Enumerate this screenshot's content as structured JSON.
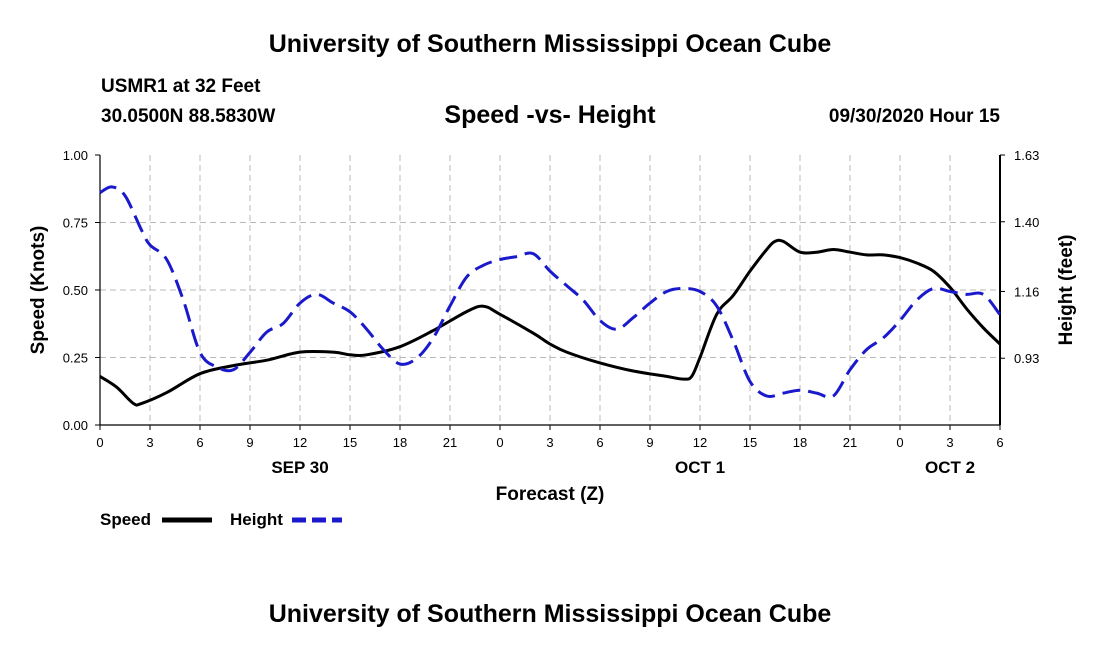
{
  "header": {
    "title": "University of Southern Mississippi Ocean Cube",
    "station": "USMR1 at 32 Feet",
    "coords": "30.0500N 88.5830W",
    "datetime": "09/30/2020 Hour 15",
    "footer_title": "University of Southern Mississippi Ocean Cube"
  },
  "chart_data": {
    "type": "line",
    "title": "Speed -vs- Height",
    "xlabel": "Forecast (Z)",
    "ylabel_left": "Speed (Knots)",
    "ylabel_right": "Height (feet)",
    "x_range": [
      0,
      54
    ],
    "x_ticks": [
      0,
      3,
      6,
      9,
      12,
      15,
      18,
      21,
      24,
      27,
      30,
      33,
      36,
      39,
      42,
      45,
      48,
      51,
      54
    ],
    "x_tick_labels": [
      "0",
      "3",
      "6",
      "9",
      "12",
      "15",
      "18",
      "21",
      "0",
      "3",
      "6",
      "9",
      "12",
      "15",
      "18",
      "21",
      "0",
      "3",
      "6"
    ],
    "date_labels": [
      {
        "label": "SEP 30",
        "x": 12
      },
      {
        "label": "OCT 1",
        "x": 36
      },
      {
        "label": "OCT 2",
        "x": 51
      }
    ],
    "y_left_range": [
      0,
      1
    ],
    "y_left_ticks": [
      0,
      0.25,
      0.5,
      0.75,
      1
    ],
    "y_left_tick_labels": [
      "0.00",
      "0.25",
      "0.50",
      "0.75",
      "1.00"
    ],
    "y_right_range": [
      0.7,
      1.63
    ],
    "y_right_ticks": [
      0.93,
      1.16,
      1.4,
      1.63
    ],
    "y_right_tick_labels": [
      "0.93",
      "1.16",
      "1.40",
      "1.63"
    ],
    "grid": true,
    "legend": {
      "placement": "bottom-left"
    },
    "series": [
      {
        "name": "Speed",
        "axis": "left",
        "color": "#000000",
        "dash": "solid",
        "x": [
          0,
          1,
          2,
          2.5,
          4,
          6,
          8,
          10,
          12,
          14,
          15,
          16,
          18,
          20,
          22,
          23,
          24,
          26,
          27,
          28,
          30,
          32,
          34,
          35,
          35.5,
          36,
          37,
          38,
          39,
          40,
          40.5,
          41,
          42,
          43,
          44,
          45,
          46,
          47,
          48,
          49,
          50,
          51,
          52,
          53,
          54
        ],
        "values": [
          0.18,
          0.14,
          0.08,
          0.08,
          0.12,
          0.19,
          0.22,
          0.24,
          0.27,
          0.27,
          0.26,
          0.26,
          0.29,
          0.35,
          0.42,
          0.44,
          0.41,
          0.34,
          0.3,
          0.27,
          0.23,
          0.2,
          0.18,
          0.17,
          0.18,
          0.25,
          0.41,
          0.48,
          0.57,
          0.65,
          0.68,
          0.68,
          0.64,
          0.64,
          0.65,
          0.64,
          0.63,
          0.63,
          0.62,
          0.6,
          0.57,
          0.51,
          0.43,
          0.36,
          0.3
        ]
      },
      {
        "name": "Height",
        "axis": "right",
        "color": "#1a1acc",
        "dash": "dashed",
        "x": [
          0,
          0.7,
          1.5,
          2.5,
          3,
          4,
          5,
          6,
          7,
          8,
          9,
          10,
          11,
          12,
          13,
          14,
          15,
          16,
          17,
          18,
          19,
          20,
          21,
          22,
          23,
          24,
          25,
          26,
          27,
          28,
          29,
          30,
          31,
          32,
          33,
          34,
          35,
          36,
          37,
          38,
          39,
          40,
          41,
          42,
          43,
          44,
          45,
          46,
          47,
          48,
          49,
          50,
          51,
          52,
          53,
          54
        ],
        "values": [
          1.5,
          1.52,
          1.49,
          1.37,
          1.32,
          1.27,
          1.13,
          0.95,
          0.9,
          0.89,
          0.95,
          1.02,
          1.05,
          1.12,
          1.15,
          1.12,
          1.09,
          1.03,
          0.96,
          0.91,
          0.93,
          1.0,
          1.11,
          1.21,
          1.25,
          1.27,
          1.28,
          1.29,
          1.23,
          1.18,
          1.13,
          1.06,
          1.03,
          1.07,
          1.12,
          1.16,
          1.17,
          1.16,
          1.11,
          0.99,
          0.85,
          0.8,
          0.81,
          0.82,
          0.81,
          0.8,
          0.89,
          0.96,
          1.0,
          1.06,
          1.13,
          1.17,
          1.16,
          1.15,
          1.15,
          1.08
        ]
      }
    ]
  }
}
